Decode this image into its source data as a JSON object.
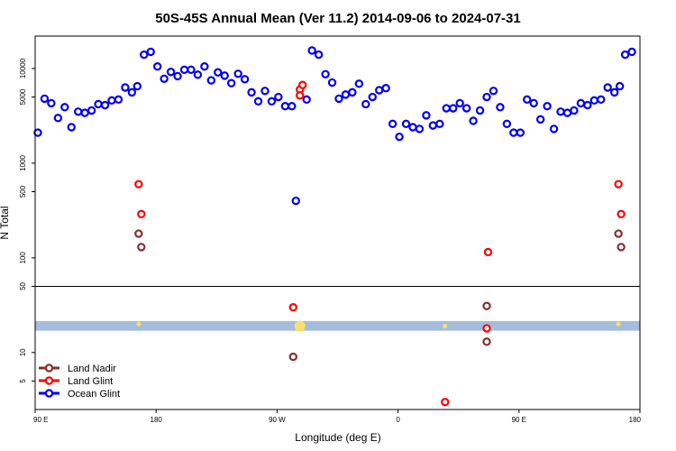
{
  "chart_data": {
    "type": "scatter",
    "title": "50S-45S Annual Mean (Ver 11.2)   2014-09-06 to 2024-07-31",
    "xlabel": "Longitude (deg E)",
    "ylabel": "N Total",
    "x_ticks": [
      {
        "value": 90,
        "label": "90 E"
      },
      {
        "value": 180,
        "label": "180"
      },
      {
        "value": 270,
        "label": "90 W"
      },
      {
        "value": 360,
        "label": "0"
      },
      {
        "value": 450,
        "label": "90 E"
      },
      {
        "value": 540,
        "label": "180"
      }
    ],
    "xlim": [
      90,
      540
    ],
    "y_ticks": [
      {
        "value": 5,
        "label": "5"
      },
      {
        "value": 10,
        "label": "10"
      },
      {
        "value": 50,
        "label": "50"
      },
      {
        "value": 100,
        "label": "100"
      },
      {
        "value": 500,
        "label": "500"
      },
      {
        "value": 1000,
        "label": "1000"
      },
      {
        "value": 5000,
        "label": "5000"
      },
      {
        "value": 10000,
        "label": "10000"
      }
    ],
    "ylim_log": [
      2.5,
      22000
    ],
    "axis_break_at": 50,
    "band": {
      "y_low": 17,
      "y_high": 21.5,
      "color": "#a5bddb"
    },
    "series": [
      {
        "name": "Land Nadir",
        "color": "#8b2e2e",
        "points": [
          {
            "x": 167,
            "y": 180
          },
          {
            "x": 169,
            "y": 130
          },
          {
            "x": 282,
            "y": 9
          },
          {
            "x": 426,
            "y": 31
          },
          {
            "x": 426,
            "y": 13
          },
          {
            "x": 524,
            "y": 180
          },
          {
            "x": 526,
            "y": 130
          }
        ]
      },
      {
        "name": "Land Glint",
        "color": "#ff0000",
        "points": [
          {
            "x": 167,
            "y": 600
          },
          {
            "x": 169,
            "y": 290
          },
          {
            "x": 282,
            "y": 30
          },
          {
            "x": 287,
            "y": 6000
          },
          {
            "x": 287,
            "y": 5200
          },
          {
            "x": 289,
            "y": 6700
          },
          {
            "x": 395,
            "y": 3
          },
          {
            "x": 427,
            "y": 115
          },
          {
            "x": 426,
            "y": 18
          },
          {
            "x": 524,
            "y": 600
          },
          {
            "x": 526,
            "y": 290
          }
        ]
      },
      {
        "name": "Ocean Glint",
        "color": "#0000ee",
        "points": [
          {
            "x": 92,
            "y": 2100
          },
          {
            "x": 97,
            "y": 4800
          },
          {
            "x": 102,
            "y": 4300
          },
          {
            "x": 107,
            "y": 3000
          },
          {
            "x": 112,
            "y": 3900
          },
          {
            "x": 117,
            "y": 2400
          },
          {
            "x": 122,
            "y": 3500
          },
          {
            "x": 127,
            "y": 3400
          },
          {
            "x": 132,
            "y": 3600
          },
          {
            "x": 137,
            "y": 4200
          },
          {
            "x": 142,
            "y": 4100
          },
          {
            "x": 147,
            "y": 4600
          },
          {
            "x": 152,
            "y": 4700
          },
          {
            "x": 157,
            "y": 6300
          },
          {
            "x": 162,
            "y": 5600
          },
          {
            "x": 166,
            "y": 6500
          },
          {
            "x": 171,
            "y": 14000
          },
          {
            "x": 176,
            "y": 15000
          },
          {
            "x": 181,
            "y": 10500
          },
          {
            "x": 186,
            "y": 7800
          },
          {
            "x": 191,
            "y": 9200
          },
          {
            "x": 196,
            "y": 8300
          },
          {
            "x": 201,
            "y": 9700
          },
          {
            "x": 206,
            "y": 9700
          },
          {
            "x": 211,
            "y": 8600
          },
          {
            "x": 216,
            "y": 10500
          },
          {
            "x": 221,
            "y": 7500
          },
          {
            "x": 226,
            "y": 9100
          },
          {
            "x": 231,
            "y": 8400
          },
          {
            "x": 236,
            "y": 7000
          },
          {
            "x": 241,
            "y": 8800
          },
          {
            "x": 246,
            "y": 7700
          },
          {
            "x": 251,
            "y": 5600
          },
          {
            "x": 256,
            "y": 4500
          },
          {
            "x": 261,
            "y": 5800
          },
          {
            "x": 266,
            "y": 4500
          },
          {
            "x": 271,
            "y": 5000
          },
          {
            "x": 276,
            "y": 4000
          },
          {
            "x": 281,
            "y": 4000
          },
          {
            "x": 284,
            "y": 400
          },
          {
            "x": 292,
            "y": 4700
          },
          {
            "x": 296,
            "y": 15500
          },
          {
            "x": 301,
            "y": 14000
          },
          {
            "x": 306,
            "y": 8700
          },
          {
            "x": 311,
            "y": 7100
          },
          {
            "x": 316,
            "y": 4800
          },
          {
            "x": 321,
            "y": 5300
          },
          {
            "x": 326,
            "y": 5600
          },
          {
            "x": 331,
            "y": 6900
          },
          {
            "x": 336,
            "y": 4200
          },
          {
            "x": 341,
            "y": 5000
          },
          {
            "x": 346,
            "y": 5900
          },
          {
            "x": 351,
            "y": 6200
          },
          {
            "x": 356,
            "y": 2600
          },
          {
            "x": 361,
            "y": 1900
          },
          {
            "x": 366,
            "y": 2600
          },
          {
            "x": 371,
            "y": 2400
          },
          {
            "x": 376,
            "y": 2300
          },
          {
            "x": 381,
            "y": 3200
          },
          {
            "x": 386,
            "y": 2500
          },
          {
            "x": 391,
            "y": 2600
          },
          {
            "x": 396,
            "y": 3800
          },
          {
            "x": 401,
            "y": 3800
          },
          {
            "x": 406,
            "y": 4300
          },
          {
            "x": 411,
            "y": 3800
          },
          {
            "x": 416,
            "y": 2800
          },
          {
            "x": 421,
            "y": 3600
          },
          {
            "x": 426,
            "y": 5000
          },
          {
            "x": 431,
            "y": 5800
          },
          {
            "x": 436,
            "y": 3900
          },
          {
            "x": 441,
            "y": 2600
          },
          {
            "x": 446,
            "y": 2100
          },
          {
            "x": 451,
            "y": 2100
          },
          {
            "x": 456,
            "y": 4700
          },
          {
            "x": 461,
            "y": 4300
          },
          {
            "x": 466,
            "y": 2900
          },
          {
            "x": 471,
            "y": 4000
          },
          {
            "x": 476,
            "y": 2300
          },
          {
            "x": 481,
            "y": 3500
          },
          {
            "x": 486,
            "y": 3400
          },
          {
            "x": 491,
            "y": 3600
          },
          {
            "x": 496,
            "y": 4300
          },
          {
            "x": 501,
            "y": 4100
          },
          {
            "x": 506,
            "y": 4600
          },
          {
            "x": 511,
            "y": 4700
          },
          {
            "x": 516,
            "y": 6300
          },
          {
            "x": 521,
            "y": 5600
          },
          {
            "x": 525,
            "y": 6500
          },
          {
            "x": 529,
            "y": 14000
          },
          {
            "x": 534,
            "y": 15000
          }
        ]
      }
    ],
    "highlights": {
      "color": "#ffe066",
      "points": [
        {
          "x": 167,
          "y": 20
        },
        {
          "x": 287,
          "y": 19
        },
        {
          "x": 395,
          "y": 19
        },
        {
          "x": 524,
          "y": 20
        }
      ]
    },
    "legend": {
      "position": "bottom-left"
    }
  }
}
